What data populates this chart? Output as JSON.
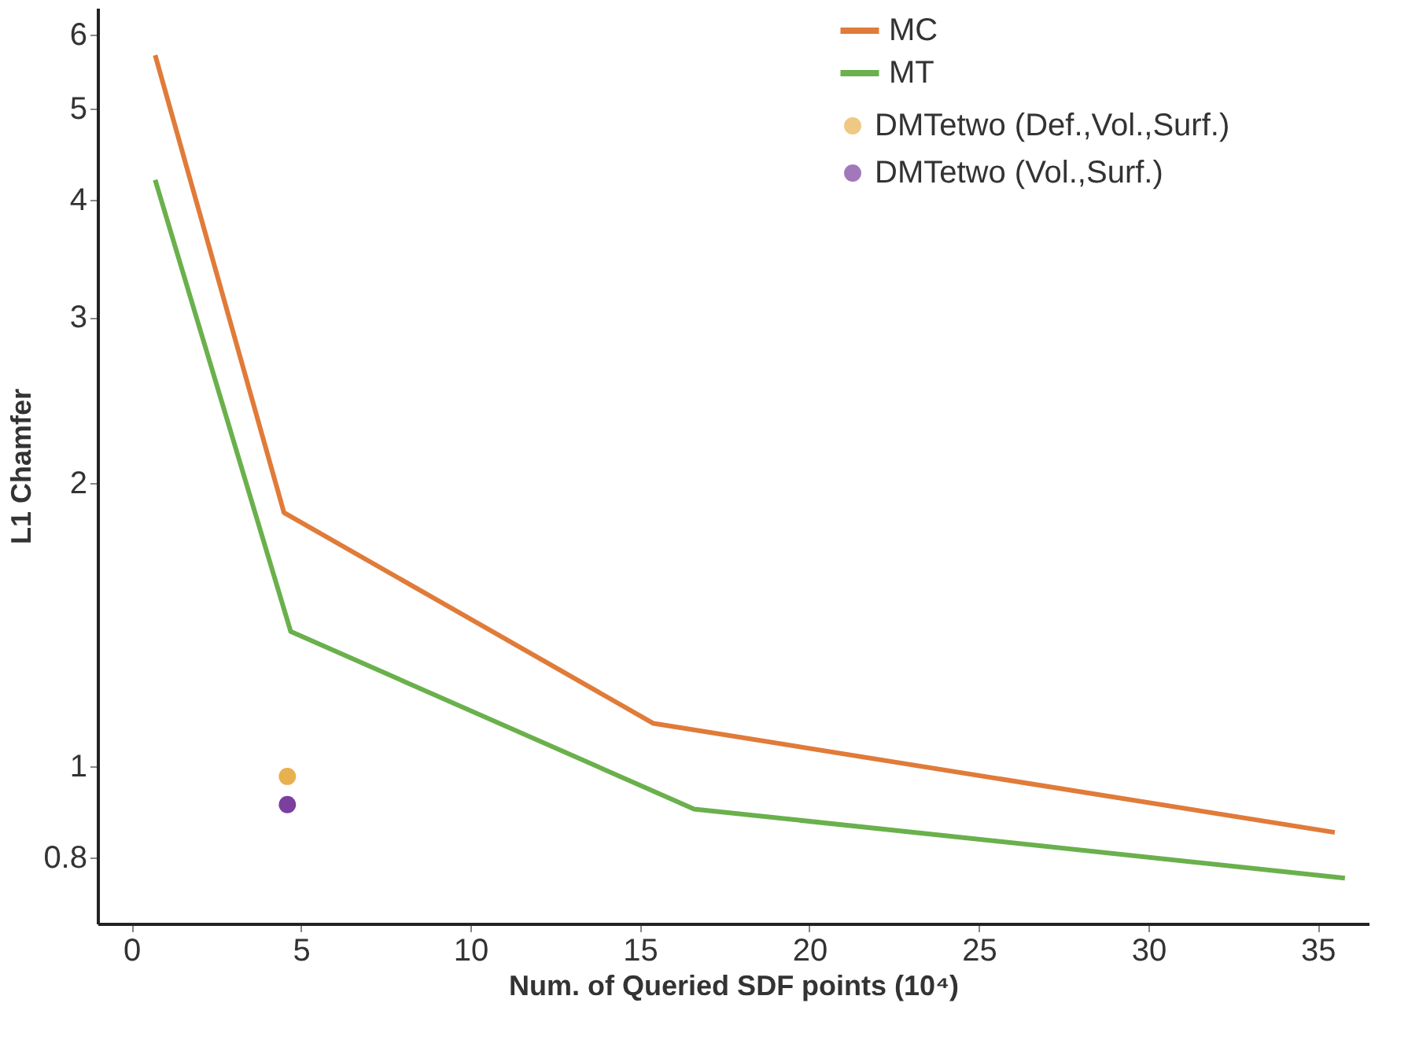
{
  "chart_data": {
    "type": "line",
    "xlabel": "Num. of Queried SDF points (10⁴)",
    "ylabel": "L1 Chamfer",
    "xlim": [
      -1,
      36.5
    ],
    "xticks": [
      0,
      5,
      10,
      15,
      20,
      25,
      30,
      35
    ],
    "ylim": [
      0.68,
      6.4
    ],
    "yticks": [
      0.8,
      1,
      2,
      3,
      4,
      5,
      6
    ],
    "log": "y",
    "grid": false,
    "legend": "top right",
    "series": [
      {
        "name": "MC",
        "color": "#e07b39",
        "x": [
          0.7,
          4.5,
          15.4,
          35.5
        ],
        "values": [
          5.7,
          1.86,
          1.11,
          0.85
        ]
      },
      {
        "name": "MT",
        "color": "#6ab04c",
        "x": [
          0.7,
          4.7,
          16.6,
          35.8
        ],
        "values": [
          4.2,
          1.39,
          0.9,
          0.76
        ]
      },
      {
        "name": "DMTetwo (Def.,Vol.,Surf.)",
        "color": "#e8b04f",
        "type": "scatter",
        "marker": "circle",
        "x": [
          4.6
        ],
        "values": [
          0.975
        ]
      },
      {
        "name": "DMTetwo (Vol.,Surf.)",
        "color": "#7b3f9e",
        "type": "scatter",
        "marker": "circle",
        "x": [
          4.6
        ],
        "values": [
          0.91
        ]
      }
    ]
  }
}
